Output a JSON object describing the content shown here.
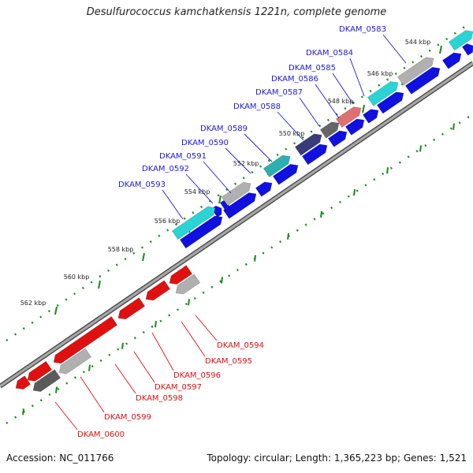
{
  "title": "Desulfurococcus kamchatkensis 1221n, complete genome",
  "footer": {
    "accession": "Accession: NC_011766",
    "summary": "Topology: circular; Length: 1,365,223 bp; Genes: 1,521"
  },
  "colors": {
    "forward_label": "#1a1adc",
    "reverse_label": "#dd1111",
    "backbone": "#808080",
    "tick": "#1a8a1a"
  },
  "kbp_labels": [
    "544 kbp",
    "546 kbp",
    "548 kbp",
    "550 kbp",
    "552 kbp",
    "554 kbp",
    "556 kbp",
    "558 kbp",
    "560 kbp",
    "562 kbp"
  ],
  "forward_genes": [
    "DKAM_0583",
    "DKAM_0584",
    "DKAM_0585",
    "DKAM_0586",
    "DKAM_0587",
    "DKAM_0588",
    "DKAM_0589",
    "DKAM_0590",
    "DKAM_0591",
    "DKAM_0592",
    "DKAM_0593"
  ],
  "reverse_genes": [
    "DKAM_0594",
    "DKAM_0595",
    "DKAM_0596",
    "DKAM_0597",
    "DKAM_0598",
    "DKAM_0599",
    "DKAM_0600"
  ]
}
